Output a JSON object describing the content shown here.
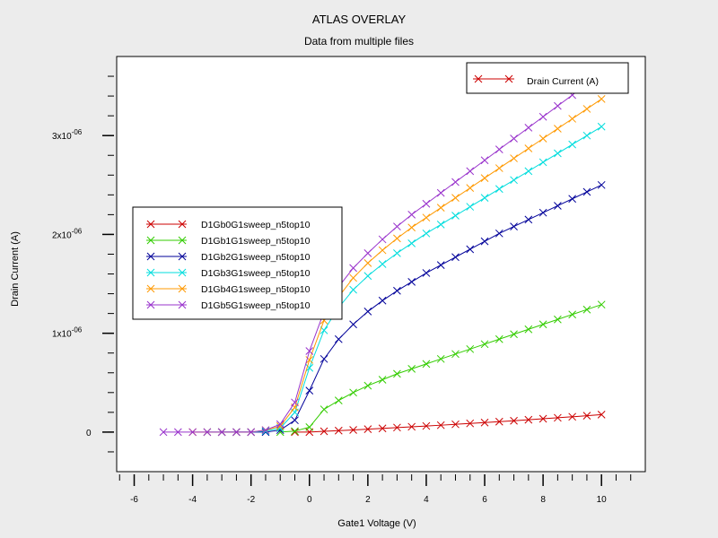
{
  "chart_data": {
    "type": "line",
    "title": "ATLAS OVERLAY",
    "subtitle": "Data from multiple files",
    "xlabel": "Gate1 Voltage (V)",
    "ylabel": "Drain Current (A)",
    "xlim": [
      -6.6,
      11.5
    ],
    "ylim": [
      -4e-07,
      3.8e-06
    ],
    "xticks": [
      -6,
      -4,
      -2,
      0,
      2,
      4,
      6,
      8,
      10
    ],
    "yticks": [
      {
        "value": 0,
        "label": "0",
        "exp": ""
      },
      {
        "value": 1e-06,
        "label": "1x10",
        "exp": "-06"
      },
      {
        "value": 2e-06,
        "label": "2x10",
        "exp": "-06"
      },
      {
        "value": 3e-06,
        "label": "3x10",
        "exp": "-06"
      }
    ],
    "grid": false,
    "top_legend": {
      "name": "Drain Current (A)",
      "color": "#cc0000"
    },
    "series": [
      {
        "name": "D1Gb0G1sweep_n5top10",
        "color": "#cc0000",
        "x": [
          -0.5,
          0,
          0.5,
          1,
          1.5,
          2,
          2.5,
          3,
          3.5,
          4,
          4.5,
          5,
          5.5,
          6,
          6.5,
          7,
          7.5,
          8,
          8.5,
          9,
          9.5,
          10
        ],
        "y": [
          0,
          0,
          8e-09,
          1.5e-08,
          2.2e-08,
          3e-08,
          3.8e-08,
          4.6e-08,
          5.4e-08,
          6.2e-08,
          7e-08,
          7.9e-08,
          8.8e-08,
          9.7e-08,
          1.06e-07,
          1.15e-07,
          1.25e-07,
          1.35e-07,
          1.45e-07,
          1.55e-07,
          1.66e-07,
          1.77e-07
        ]
      },
      {
        "name": "D1Gb1G1sweep_n5top10",
        "color": "#33cc00",
        "x": [
          -1,
          -0.5,
          0,
          0.5,
          1,
          1.5,
          2,
          2.5,
          3,
          3.5,
          4,
          4.5,
          5,
          5.5,
          6,
          6.5,
          7,
          7.5,
          8,
          8.5,
          9,
          9.5,
          10
        ],
        "y": [
          0,
          1e-08,
          5e-08,
          2.3e-07,
          3.2e-07,
          4e-07,
          4.7e-07,
          5.3e-07,
          5.9e-07,
          6.4e-07,
          6.9e-07,
          7.4e-07,
          7.9e-07,
          8.4e-07,
          8.9e-07,
          9.4e-07,
          9.9e-07,
          1.04e-06,
          1.09e-06,
          1.14e-06,
          1.19e-06,
          1.24e-06,
          1.29e-06
        ]
      },
      {
        "name": "D1Gb2G1sweep_n5top10",
        "color": "#000099",
        "x": [
          -3,
          -2.5,
          -2,
          -1.5,
          -1,
          -0.5,
          0,
          0.5,
          1,
          1.5,
          2,
          2.5,
          3,
          3.5,
          4,
          4.5,
          5,
          5.5,
          6,
          6.5,
          7,
          7.5,
          8,
          8.5,
          9,
          9.5,
          10
        ],
        "y": [
          0,
          0,
          0,
          0,
          2e-08,
          1.2e-07,
          4.2e-07,
          7.4e-07,
          9.4e-07,
          1.09e-06,
          1.22e-06,
          1.33e-06,
          1.43e-06,
          1.52e-06,
          1.61e-06,
          1.69e-06,
          1.77e-06,
          1.85e-06,
          1.93e-06,
          2.01e-06,
          2.08e-06,
          2.15e-06,
          2.22e-06,
          2.29e-06,
          2.36e-06,
          2.43e-06,
          2.5e-06
        ]
      },
      {
        "name": "D1Gb3G1sweep_n5top10",
        "color": "#00dddd",
        "x": [
          -3.5,
          -3,
          -2.5,
          -2,
          -1.5,
          -1,
          -0.5,
          0,
          0.5,
          1,
          1.5,
          2,
          2.5,
          3,
          3.5,
          4,
          4.5,
          5,
          5.5,
          6,
          6.5,
          7,
          7.5,
          8,
          8.5,
          9,
          9.5,
          10
        ],
        "y": [
          0,
          0,
          0,
          0,
          1e-08,
          4e-08,
          2e-07,
          6.5e-07,
          1.03e-06,
          1.26e-06,
          1.44e-06,
          1.58e-06,
          1.7e-06,
          1.81e-06,
          1.91e-06,
          2.01e-06,
          2.1e-06,
          2.19e-06,
          2.28e-06,
          2.37e-06,
          2.46e-06,
          2.55e-06,
          2.64e-06,
          2.73e-06,
          2.82e-06,
          2.91e-06,
          3e-06,
          3.09e-06
        ]
      },
      {
        "name": "D1Gb4G1sweep_n5top10",
        "color": "#ff9900",
        "x": [
          -4,
          -3.5,
          -3,
          -2.5,
          -2,
          -1.5,
          -1,
          -0.5,
          0,
          0.5,
          1,
          1.5,
          2,
          2.5,
          3,
          3.5,
          4,
          4.5,
          5,
          5.5,
          6,
          6.5,
          7,
          7.5,
          8,
          8.5,
          9,
          9.5,
          10
        ],
        "y": [
          0,
          0,
          0,
          0,
          0,
          2e-08,
          6e-08,
          2.5e-07,
          7.3e-07,
          1.13e-06,
          1.37e-06,
          1.56e-06,
          1.71e-06,
          1.84e-06,
          1.96e-06,
          2.07e-06,
          2.17e-06,
          2.27e-06,
          2.37e-06,
          2.47e-06,
          2.57e-06,
          2.67e-06,
          2.77e-06,
          2.87e-06,
          2.97e-06,
          3.07e-06,
          3.17e-06,
          3.27e-06,
          3.37e-06
        ]
      },
      {
        "name": "D1Gb5G1sweep_n5top10",
        "color": "#9933cc",
        "x": [
          -5,
          -4.5,
          -4,
          -3.5,
          -3,
          -2.5,
          -2,
          -1.5,
          -1,
          -0.5,
          0,
          0.5,
          1,
          1.5,
          2,
          2.5,
          3,
          3.5,
          4,
          4.5,
          5,
          5.5,
          6,
          6.5,
          7,
          7.5,
          8,
          8.5,
          9,
          9.5,
          10
        ],
        "y": [
          0,
          0,
          0,
          0,
          0,
          0,
          0,
          2e-08,
          8e-08,
          3e-07,
          8.2e-07,
          1.22e-06,
          1.47e-06,
          1.66e-06,
          1.81e-06,
          1.95e-06,
          2.08e-06,
          2.2e-06,
          2.31e-06,
          2.42e-06,
          2.53e-06,
          2.64e-06,
          2.75e-06,
          2.86e-06,
          2.97e-06,
          3.08e-06,
          3.19e-06,
          3.3e-06,
          3.41e-06,
          3.52e-06,
          3.63e-06
        ]
      }
    ]
  }
}
